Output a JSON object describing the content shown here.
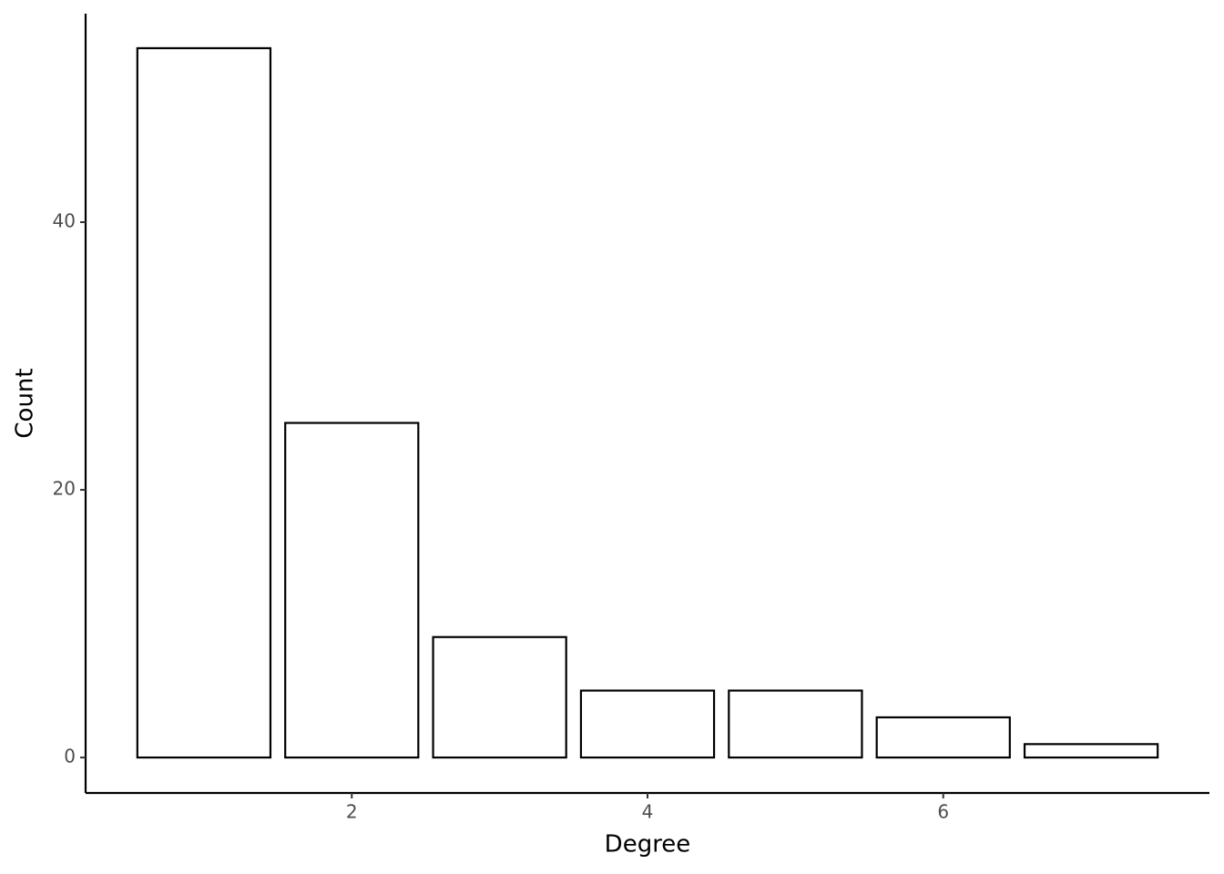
{
  "chart_data": {
    "type": "bar",
    "x_label": "Degree",
    "y_label": "Count",
    "x": [
      1,
      2,
      3,
      4,
      5,
      6,
      7
    ],
    "values": [
      53,
      25,
      9,
      5,
      5,
      3,
      1
    ],
    "color": "#ffffff",
    "edge_color": "#000000",
    "xlim": [
      0.2,
      7.8
    ],
    "ylim": [
      -2.65,
      55.58
    ],
    "xticks": [
      2,
      4,
      6
    ],
    "yticks": [
      0,
      20,
      40
    ],
    "grid": false
  }
}
